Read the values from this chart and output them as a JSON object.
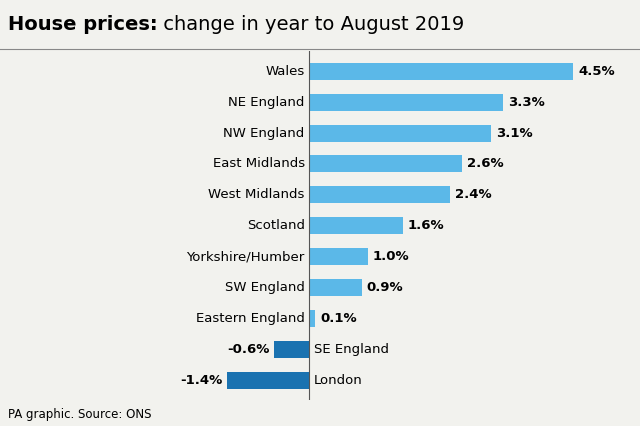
{
  "title_bold": "House prices:",
  "title_regular": " change in year to August 2019",
  "categories": [
    "Wales",
    "NE England",
    "NW England",
    "East Midlands",
    "West Midlands",
    "Scotland",
    "Yorkshire/Humber",
    "SW England",
    "Eastern England",
    "SE England",
    "London"
  ],
  "values": [
    4.5,
    3.3,
    3.1,
    2.6,
    2.4,
    1.6,
    1.0,
    0.9,
    0.1,
    -0.6,
    -1.4
  ],
  "labels": [
    "4.5%",
    "3.3%",
    "3.1%",
    "2.6%",
    "2.4%",
    "1.6%",
    "1.0%",
    "0.9%",
    "0.1%",
    "-0.6%",
    "-1.4%"
  ],
  "positive_color": "#5BB8E8",
  "negative_color": "#1A72B0",
  "background_color": "#F2F2EE",
  "xlim": [
    -2.0,
    5.2
  ],
  "source_text": "PA graphic. Source: ONS",
  "title_fontsize": 14,
  "label_fontsize": 9.5,
  "source_fontsize": 8.5,
  "bar_height": 0.55
}
